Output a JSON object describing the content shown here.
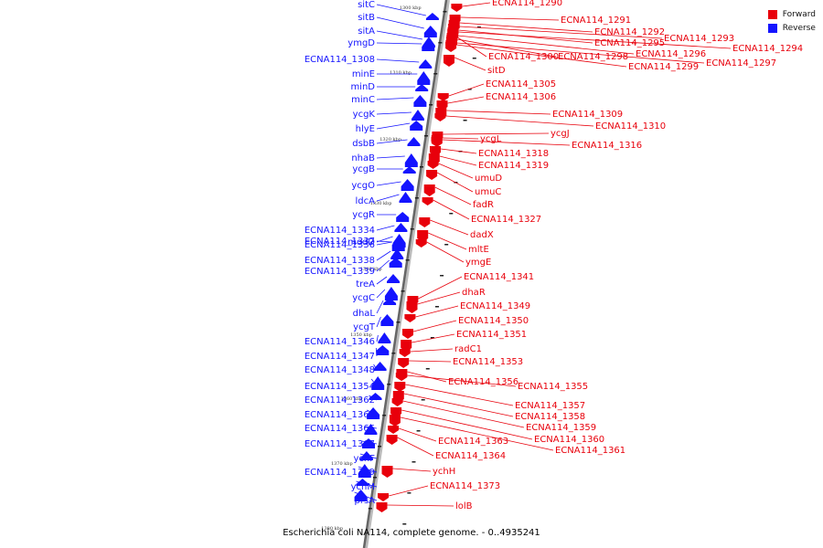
{
  "legend": {
    "forward_label": "Forward",
    "reverse_label": "Reverse",
    "forward_color": "#e8000b",
    "reverse_color": "#1414ff"
  },
  "caption": "Escherichia coli NA114, complete genome. - 0..4935241",
  "scale": {
    "ticks": [
      "1300 kbp",
      "1310 kbp",
      "1320 kbp",
      "1330 kbp",
      "1340 kbp",
      "1350 kbp",
      "1360 kbp",
      "1370 kbp",
      "1380 kbp"
    ]
  },
  "genes": {
    "reverse": [
      "sitC",
      "sitB",
      "sitA",
      "ymgD",
      "ECNA114_1308",
      "minE",
      "minD",
      "minC",
      "ycgK",
      "hlyE",
      "dsbB",
      "nhaB",
      "ycgB",
      "ycgO",
      "ldcA",
      "ycgR",
      "ECNA114_1334",
      "modD",
      "ECNA114_1336",
      "ECNA114_1337",
      "ECNA114_1338",
      "ECNA114_1339",
      "treA",
      "ycgC",
      "dhaL",
      "ycgT",
      "ECNA114_1346",
      "ECNA114_1347",
      "ECNA114_1348",
      "ECNA114_1354",
      "ECNA114_1362",
      "ECNA114_1365",
      "ECNA114_1366",
      "ECNA114_1367",
      "ychF",
      "ECNA114_1369",
      "ychM",
      "prsA"
    ],
    "forward": [
      "ECNA114_1290",
      "ECNA114_1291",
      "ECNA114_1292",
      "ECNA114_1293",
      "ECNA114_1295",
      "ECNA114_1294",
      "ECNA114_1296",
      "ECNA114_1300",
      "ECNA114_1298",
      "ECNA114_1297",
      "ECNA114_1299",
      "sitD",
      "ECNA114_1305",
      "ECNA114_1306",
      "ECNA114_1309",
      "ECNA114_1310",
      "ycgJ",
      "ycgL",
      "ECNA114_1316",
      "ECNA114_1318",
      "ECNA114_1319",
      "umuD",
      "umuC",
      "fadR",
      "ECNA114_1327",
      "dadX",
      "mltE",
      "ymgE",
      "ECNA114_1341",
      "dhaR",
      "ECNA114_1349",
      "ECNA114_1350",
      "ECNA114_1351",
      "radC1",
      "ECNA114_1353",
      "ECNA114_1356",
      "ECNA114_1355",
      "ECNA114_1357",
      "ECNA114_1358",
      "ECNA114_1359",
      "ECNA114_1360",
      "ECNA114_1361",
      "ECNA114_1363",
      "ECNA114_1364",
      "ychH",
      "ECNA114_1373",
      "lolB"
    ]
  }
}
